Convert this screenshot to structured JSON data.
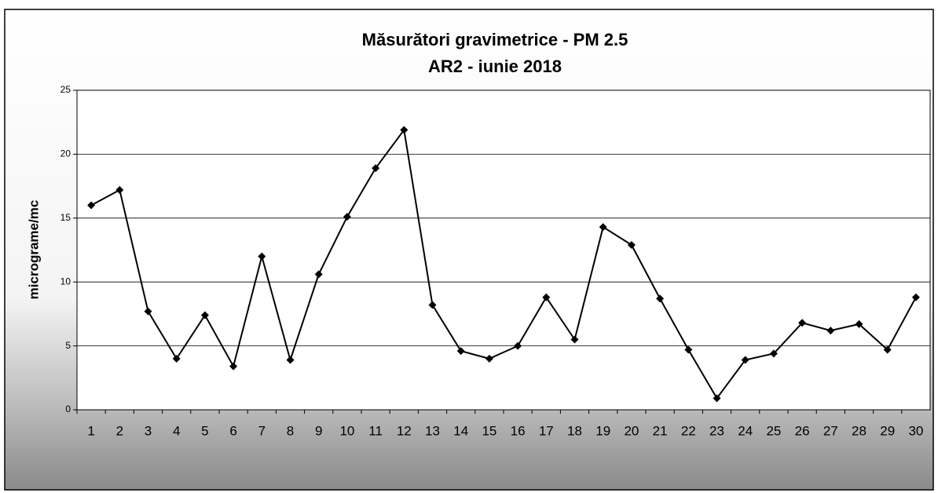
{
  "chart_data": {
    "type": "line",
    "title": "Măsurători gravimetrice - PM 2.5",
    "subtitle": "AR2 - iunie 2018",
    "y_label": "micrograme/mc",
    "categories": [
      "1",
      "2",
      "3",
      "4",
      "5",
      "6",
      "7",
      "8",
      "9",
      "10",
      "11",
      "12",
      "13",
      "14",
      "15",
      "16",
      "17",
      "18",
      "19",
      "20",
      "21",
      "22",
      "23",
      "24",
      "25",
      "26",
      "27",
      "28",
      "29",
      "30"
    ],
    "series": [
      {
        "name": "PM 2.5",
        "color": "#000000",
        "values": [
          16,
          17.2,
          7.7,
          4,
          7.4,
          3.4,
          12,
          3.9,
          10.6,
          15.1,
          18.9,
          21.9,
          8.2,
          4.6,
          4,
          5,
          8.8,
          5.5,
          14.3,
          12.9,
          8.7,
          4.7,
          0.9,
          3.9,
          4.4,
          6.8,
          6.2,
          6.7,
          4.7,
          8.8
        ]
      }
    ],
    "ylim": [
      0,
      25
    ],
    "yticks": [
      0,
      5,
      10,
      15,
      20,
      25
    ],
    "grid": true
  }
}
